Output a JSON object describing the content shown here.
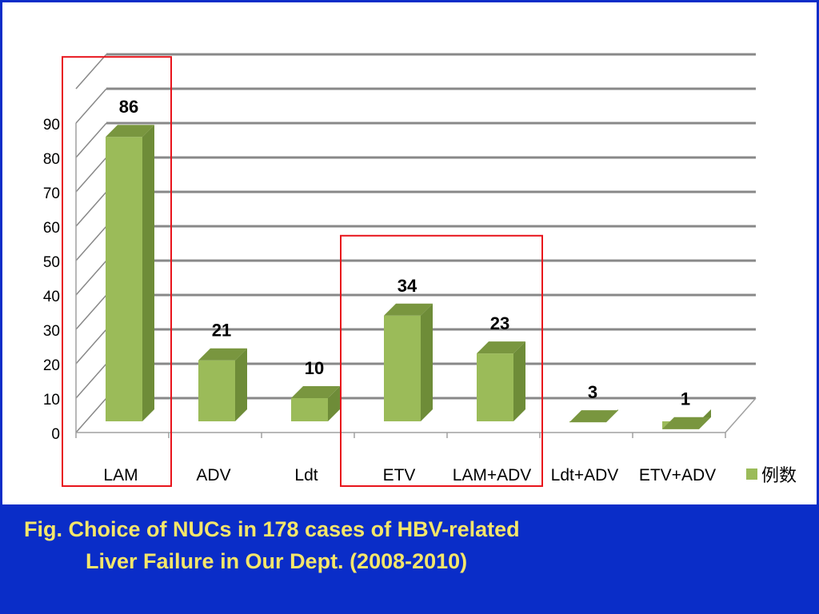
{
  "chart_data": {
    "type": "bar",
    "categories": [
      "LAM",
      "ADV",
      "Ldt",
      "ETV",
      "LAM+ADV",
      "Ldt+ADV",
      "ETV+ADV"
    ],
    "series": [
      {
        "name": "例数",
        "values": [
          86,
          21,
          10,
          34,
          23,
          3,
          1
        ]
      }
    ],
    "data_labels": [
      "86",
      "21",
      "10",
      "34",
      "23",
      "3",
      "1"
    ],
    "y_ticks": [
      "0",
      "10",
      "20",
      "30",
      "40",
      "50",
      "60",
      "70",
      "80",
      "90"
    ],
    "ylim": [
      0,
      100
    ],
    "y_tick_step": 10,
    "grid": true,
    "legend_placement": "right",
    "highlighted_groups": [
      [
        "LAM"
      ],
      [
        "ETV",
        "LAM+ADV"
      ]
    ],
    "colors": {
      "bar_front": "#9BBB59",
      "bar_side": "#6E8C38",
      "bar_top": "#79963F",
      "gridline": "#888888",
      "highlight_box": "#E8141C"
    }
  },
  "caption": {
    "line1": "Fig. Choice of NUCs in 178 cases of HBV-related",
    "line2": "Liver Failure in Our Dept. (2008-2010)"
  },
  "colors": {
    "background": "#0A2DC8",
    "panel": "#FFFFFF",
    "caption_text": "#F5E66A"
  }
}
